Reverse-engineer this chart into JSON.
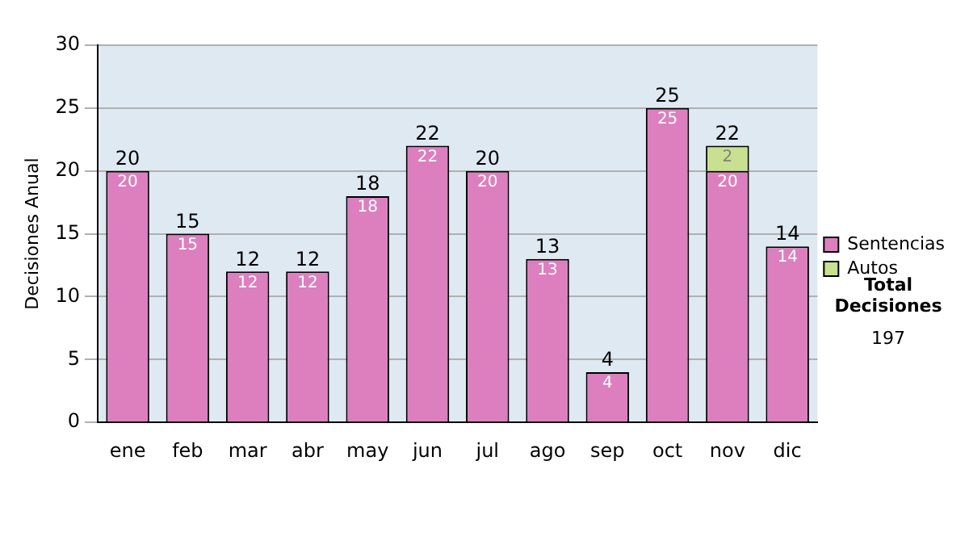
{
  "chart_data": {
    "type": "bar",
    "ylabel": "Decisiones Anual",
    "categories": [
      "ene",
      "feb",
      "mar",
      "abr",
      "may",
      "jun",
      "jul",
      "ago",
      "sep",
      "oct",
      "nov",
      "dic"
    ],
    "series": [
      {
        "name": "Sentencias",
        "color": "#dd7fbf",
        "values": [
          20,
          15,
          12,
          12,
          18,
          22,
          20,
          13,
          4,
          25,
          20,
          14
        ]
      },
      {
        "name": "Autos",
        "color": "#c8e090",
        "values": [
          null,
          null,
          null,
          null,
          null,
          null,
          null,
          null,
          null,
          null,
          2,
          null
        ]
      }
    ],
    "stacked": true,
    "ylim": [
      0,
      30
    ],
    "yticks": [
      0,
      5,
      10,
      15,
      20,
      25,
      30
    ],
    "grid": "y",
    "legend": "right",
    "data_labels": true,
    "totals": [
      "20",
      "15",
      "12",
      "12",
      "18",
      "22",
      "20",
      "13",
      "4",
      "25",
      "22",
      "14"
    ],
    "annotations": [
      "Total Decisiones",
      "197"
    ]
  }
}
